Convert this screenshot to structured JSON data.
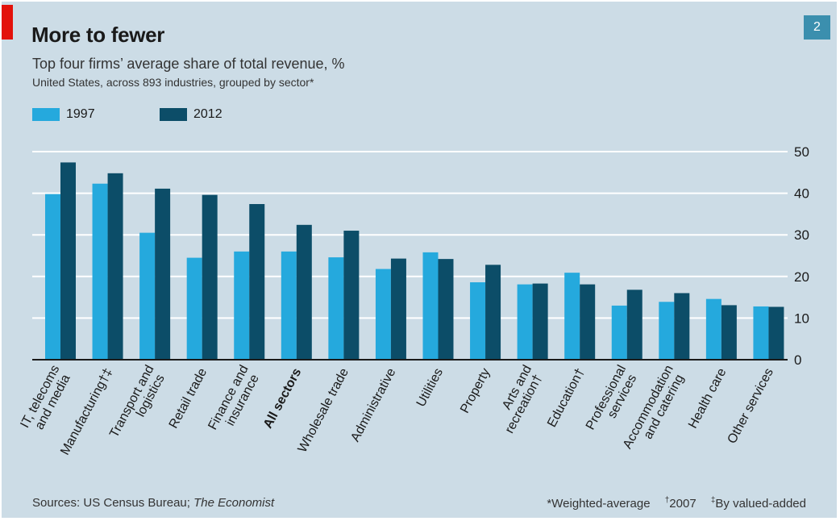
{
  "header": {
    "title": "More to fewer",
    "subtitle": "Top four firms’ average share of total revenue, %",
    "subsubtitle": "United States, across 893 industries, grouped by sector*",
    "badge": "2"
  },
  "footer": {
    "source_prefix": "Sources: US Census Bureau; ",
    "source_italic": "The Economist",
    "note1": "*Weighted-average",
    "note2_mark": "†",
    "note2": "2007",
    "note3_mark": "‡",
    "note3": "By valued-added"
  },
  "colors": {
    "background": "#ccdce6",
    "series_1997": "#25a9dd",
    "series_2012": "#0c4d68",
    "grid": "#ffffff",
    "axis": "#1a1a1a",
    "accent": "#e3120b"
  },
  "chart_data": {
    "type": "bar",
    "title": "More to fewer",
    "subtitle": "Top four firms’ average share of total revenue, %",
    "categories": [
      "IT, telecoms and media",
      "Manufacturing†‡",
      "Transport and logistics",
      "Retail trade",
      "Finance and insurance",
      "All sectors",
      "Wholesale trade",
      "Administrative",
      "Utilities",
      "Property",
      "Arts and recreation†",
      "Education†",
      "Professional services",
      "Accommodation and catering",
      "Health care",
      "Other services"
    ],
    "category_lines": [
      [
        "IT, telecoms",
        "and media"
      ],
      [
        "Manufacturing†‡"
      ],
      [
        "Transport and",
        "logistics"
      ],
      [
        "Retail trade"
      ],
      [
        "Finance and",
        "insurance"
      ],
      [
        "All sectors"
      ],
      [
        "Wholesale trade"
      ],
      [
        "Administrative"
      ],
      [
        "Utilities"
      ],
      [
        "Property"
      ],
      [
        "Arts and",
        "recreation†"
      ],
      [
        "Education†"
      ],
      [
        "Professional",
        "services"
      ],
      [
        "Accommodation",
        "and catering"
      ],
      [
        "Health care"
      ],
      [
        "Other services"
      ]
    ],
    "bold_category": "All sectors",
    "series": [
      {
        "name": "1997",
        "values": [
          39.8,
          42.3,
          30.5,
          24.5,
          26.0,
          26.0,
          24.6,
          21.8,
          25.8,
          18.6,
          18.1,
          20.9,
          13.0,
          13.9,
          14.6,
          12.8
        ]
      },
      {
        "name": "2012",
        "values": [
          47.4,
          44.8,
          41.1,
          39.6,
          37.4,
          32.4,
          31.0,
          24.3,
          24.2,
          22.8,
          18.3,
          18.1,
          16.8,
          16.0,
          13.1,
          12.7
        ]
      }
    ],
    "yticks": [
      0,
      10,
      20,
      30,
      40,
      50
    ],
    "ylim": [
      0,
      50
    ],
    "ylabel": "",
    "xlabel": "",
    "grid": true,
    "legend": "top-left",
    "yaxis_side": "right"
  }
}
